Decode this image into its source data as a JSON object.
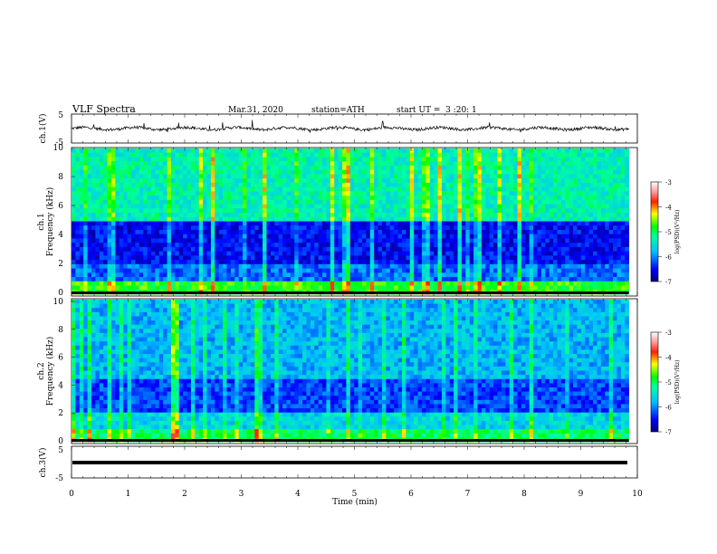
{
  "header": {
    "title": "VLF Spectra",
    "date": "Mar.31, 2020",
    "station": "station=ATH",
    "start": "start UT =  3 :20: 1"
  },
  "chart_data": [
    {
      "type": "line",
      "id": "ch1-waveform",
      "ylabel": "ch.1(V)",
      "ylim": [
        -5,
        5
      ],
      "yticks": [
        "5",
        "-5"
      ],
      "xlim": [
        0,
        10
      ],
      "description_values": {
        "baseline_v": 0,
        "noise_amplitude_v": 1
      }
    },
    {
      "type": "heatmap",
      "id": "ch1-spectrogram",
      "ylabel": "ch.1\nFrequency (kHz)",
      "ylim": [
        0,
        10
      ],
      "yticks": [
        "0",
        "2",
        "4",
        "6",
        "8",
        "10"
      ],
      "xlim": [
        0,
        9.85
      ],
      "colorbar": {
        "label": "log(PSD)(V²/Hz)",
        "range": [
          -7,
          -3
        ],
        "ticks": [
          "-3",
          "-4",
          "-5",
          "-6",
          "-7"
        ]
      }
    },
    {
      "type": "heatmap",
      "id": "ch2-spectrogram",
      "ylabel": "ch.2\nFrequency (kHz)",
      "ylim": [
        0,
        10
      ],
      "yticks": [
        "0",
        "2",
        "4",
        "6",
        "8",
        "10"
      ],
      "xlim": [
        0,
        9.85
      ],
      "colorbar": {
        "label": "log(PSD)(V²/Hz)",
        "range": [
          -7,
          -3
        ],
        "ticks": [
          "-3",
          "-4",
          "-5",
          "-6",
          "-7"
        ]
      }
    },
    {
      "type": "line",
      "id": "ch3-waveform",
      "ylabel": "ch.3(V)",
      "ylim": [
        -5,
        5
      ],
      "yticks": [
        "5",
        "-5"
      ],
      "xlim": [
        0,
        10
      ],
      "description_values": {
        "baseline_v": -1.2
      }
    }
  ],
  "xaxis": {
    "label": "Time (min)",
    "ticks": [
      "0",
      "1",
      "2",
      "3",
      "4",
      "5",
      "6",
      "7",
      "8",
      "9",
      "10"
    ],
    "range": [
      0,
      10
    ]
  }
}
